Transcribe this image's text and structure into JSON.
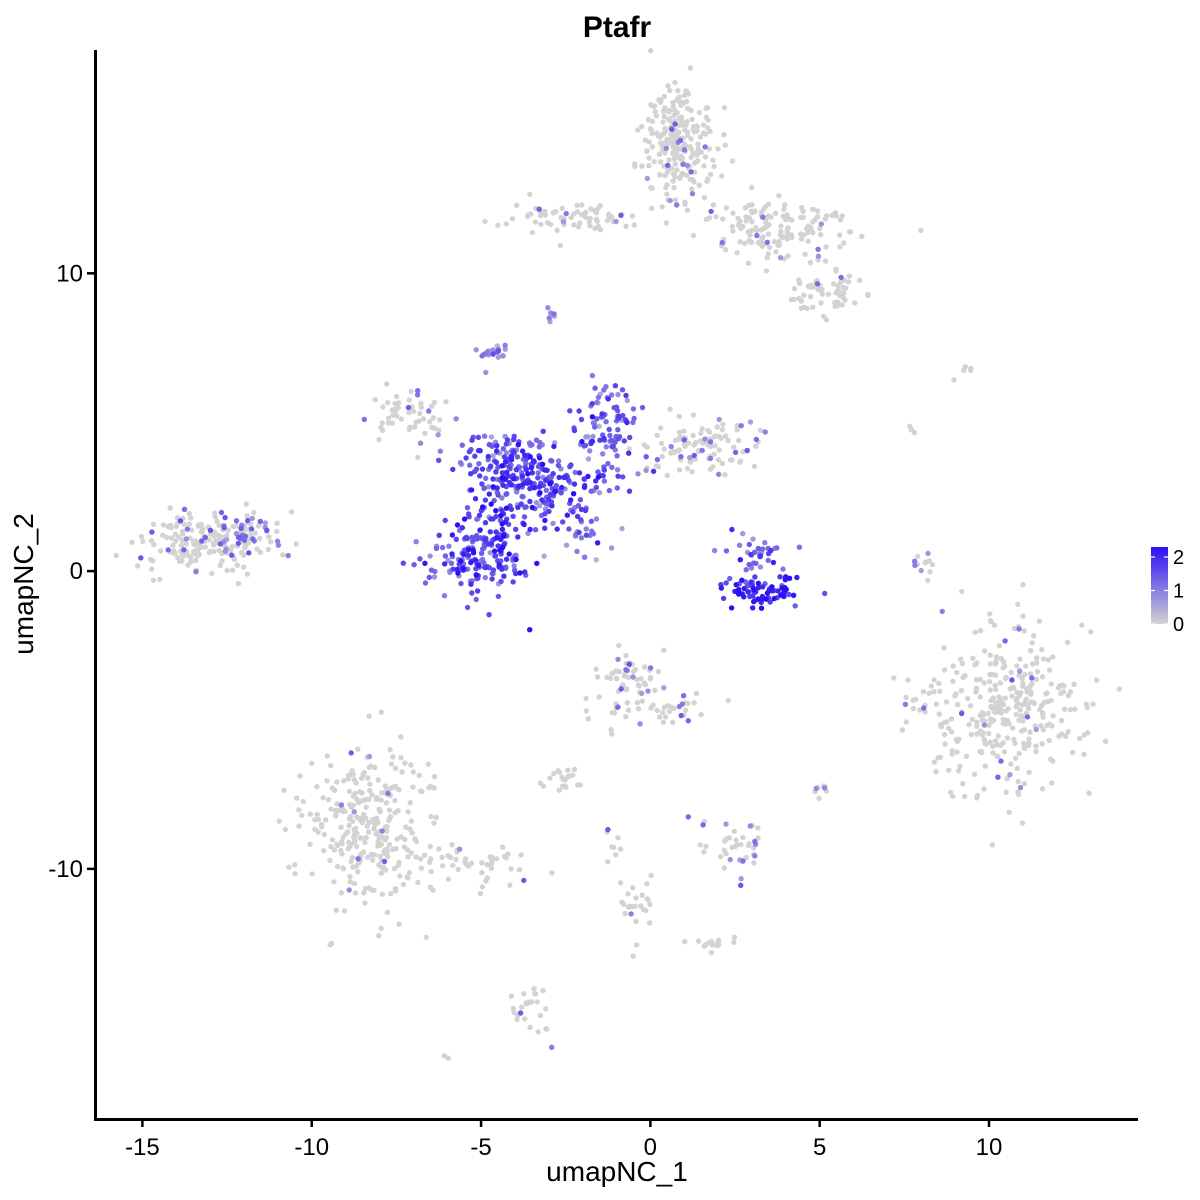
{
  "chart_data": {
    "type": "scatter",
    "title": "Ptafr",
    "xlabel": "umapNC_1",
    "ylabel": "umapNC_2",
    "xlim": [
      -16.4,
      14.4
    ],
    "ylim": [
      -18.4,
      17.5
    ],
    "x_ticks": [
      -15,
      -10,
      -5,
      0,
      5,
      10
    ],
    "x_tick_labels": [
      "-15",
      "-10",
      "-5",
      "0",
      "5",
      "10"
    ],
    "y_ticks": [
      -10,
      0,
      10
    ],
    "y_tick_labels": [
      "-10",
      "0",
      "10"
    ],
    "grid": false,
    "legend": {
      "placement": "right",
      "labels": [
        "2",
        "1",
        "0"
      ],
      "values": [
        2,
        1,
        0
      ],
      "min": 0,
      "max": 2.3
    },
    "color_scale": {
      "low": "#d3d3d3",
      "high": "#2a0ff5"
    },
    "clusters": [
      {
        "cx": 0.9,
        "cy": 14.5,
        "sx": 0.55,
        "sy": 1.0,
        "n": 240,
        "expr": 0.03
      },
      {
        "cx": 3.8,
        "cy": 11.5,
        "sx": 1.2,
        "sy": 0.5,
        "n": 150,
        "expr": 0.04
      },
      {
        "cx": 5.2,
        "cy": 9.4,
        "sx": 0.6,
        "sy": 0.35,
        "n": 60,
        "expr": 0.03
      },
      {
        "cx": -2.2,
        "cy": 11.9,
        "sx": 0.9,
        "sy": 0.25,
        "n": 70,
        "expr": 0.04
      },
      {
        "cx": -13.1,
        "cy": 0.9,
        "sx": 1.0,
        "sy": 0.55,
        "n": 170,
        "expr": 0.08
      },
      {
        "cx": -11.9,
        "cy": 1.3,
        "sx": 0.55,
        "sy": 0.3,
        "n": 45,
        "expr": 0.3
      },
      {
        "cx": -7.0,
        "cy": 5.2,
        "sx": 0.55,
        "sy": 0.5,
        "n": 55,
        "expr": 0.15
      },
      {
        "cx": -4.3,
        "cy": 3.8,
        "sx": 0.8,
        "sy": 0.45,
        "n": 120,
        "expr": 1.5
      },
      {
        "cx": -3.0,
        "cy": 2.8,
        "sx": 0.9,
        "sy": 0.6,
        "n": 170,
        "expr": 1.6
      },
      {
        "cx": -4.6,
        "cy": 1.2,
        "sx": 0.5,
        "sy": 1.1,
        "n": 130,
        "expr": 1.6
      },
      {
        "cx": -5.5,
        "cy": 0.4,
        "sx": 0.6,
        "sy": 0.55,
        "n": 90,
        "expr": 1.5
      },
      {
        "cx": -1.2,
        "cy": 4.8,
        "sx": 0.45,
        "sy": 0.8,
        "n": 90,
        "expr": 1.3
      },
      {
        "cx": 1.6,
        "cy": 4.2,
        "sx": 0.9,
        "sy": 0.45,
        "n": 110,
        "expr": 0.15
      },
      {
        "cx": -4.6,
        "cy": 7.3,
        "sx": 0.2,
        "sy": 0.2,
        "n": 20,
        "expr": 0.9
      },
      {
        "cx": -1.8,
        "cy": 1.3,
        "sx": 0.6,
        "sy": 0.45,
        "n": 25,
        "expr": 1.2
      },
      {
        "cx": 3.3,
        "cy": -0.7,
        "sx": 0.7,
        "sy": 0.25,
        "n": 80,
        "expr": 2.0
      },
      {
        "cx": 3.1,
        "cy": 0.6,
        "sx": 0.4,
        "sy": 0.4,
        "n": 35,
        "expr": 1.4
      },
      {
        "cx": 10.5,
        "cy": -4.7,
        "sx": 1.2,
        "sy": 1.4,
        "n": 330,
        "expr": 0.02
      },
      {
        "cx": -8.3,
        "cy": -8.6,
        "sx": 0.95,
        "sy": 1.3,
        "n": 300,
        "expr": 0.02
      },
      {
        "cx": -5.2,
        "cy": -9.8,
        "sx": 0.9,
        "sy": 0.3,
        "n": 45,
        "expr": 0.02
      },
      {
        "cx": -0.6,
        "cy": -3.8,
        "sx": 0.5,
        "sy": 0.5,
        "n": 70,
        "expr": 0.12
      },
      {
        "cx": 0.8,
        "cy": -4.7,
        "sx": 0.5,
        "sy": 0.3,
        "n": 25,
        "expr": 0.05
      },
      {
        "cx": -2.6,
        "cy": -6.9,
        "sx": 0.35,
        "sy": 0.2,
        "n": 20,
        "expr": 0.05
      },
      {
        "cx": 2.6,
        "cy": -9.3,
        "sx": 0.45,
        "sy": 0.45,
        "n": 40,
        "expr": 0.25
      },
      {
        "cx": -0.4,
        "cy": -11.2,
        "sx": 0.3,
        "sy": 0.55,
        "n": 25,
        "expr": 0.02
      },
      {
        "cx": 1.9,
        "cy": -12.5,
        "sx": 0.35,
        "sy": 0.15,
        "n": 15,
        "expr": 0.02
      },
      {
        "cx": -3.5,
        "cy": -14.8,
        "sx": 0.3,
        "sy": 0.5,
        "n": 25,
        "expr": 0.02
      },
      {
        "cx": 7.9,
        "cy": -4.6,
        "sx": 0.2,
        "sy": 0.25,
        "n": 10,
        "expr": 0.1
      },
      {
        "cx": 5.1,
        "cy": -7.3,
        "sx": 0.12,
        "sy": 0.15,
        "n": 8,
        "expr": 0.3
      },
      {
        "cx": 8.0,
        "cy": 0.2,
        "sx": 0.2,
        "sy": 0.45,
        "n": 12,
        "expr": 0.2
      },
      {
        "cx": -2.9,
        "cy": 8.6,
        "sx": 0.1,
        "sy": 0.15,
        "n": 6,
        "expr": 0.7
      },
      {
        "cx": -6.1,
        "cy": -16.3,
        "sx": 0.05,
        "sy": 0.05,
        "n": 2,
        "expr": 0.02
      },
      {
        "cx": 9.6,
        "cy": 6.7,
        "sx": 0.35,
        "sy": 0.2,
        "n": 5,
        "expr": 0.02
      },
      {
        "cx": 7.7,
        "cy": 4.7,
        "sx": 0.1,
        "sy": 0.2,
        "n": 3,
        "expr": 0.02
      },
      {
        "cx": -0.9,
        "cy": -9.2,
        "sx": 0.3,
        "sy": 0.6,
        "n": 8,
        "expr": 0.02
      }
    ]
  }
}
